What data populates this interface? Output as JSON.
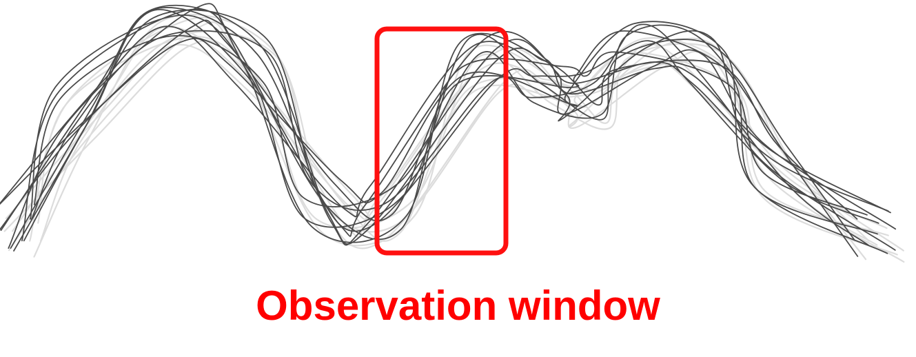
{
  "caption": {
    "text": "Observation window",
    "color": "#ff0000"
  },
  "colors": {
    "trajectory_dark": "#4a4a4a",
    "trajectory_light": "#dcdcdc",
    "window_border": "#ff1010"
  },
  "trajectories": {
    "dark_count": 12,
    "light_count": 8
  }
}
